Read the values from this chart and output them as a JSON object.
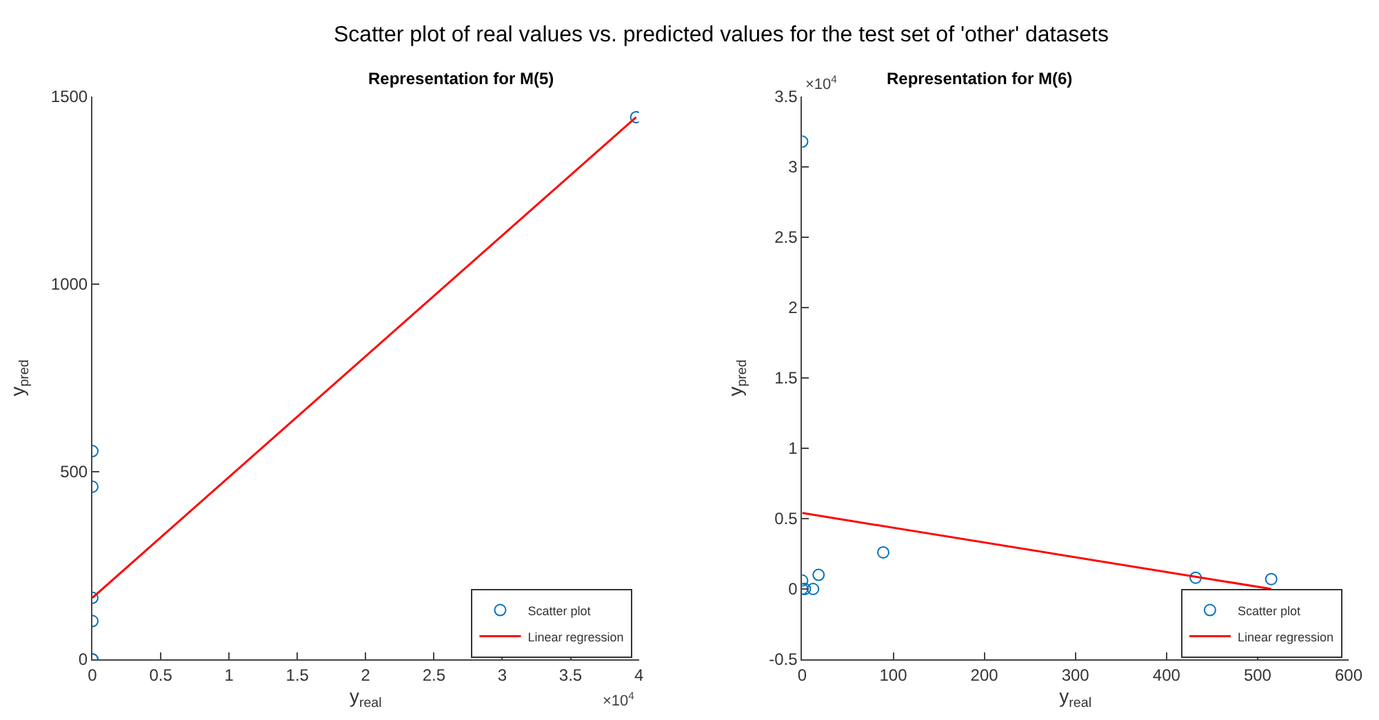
{
  "chart_data": [
    {
      "type": "scatter",
      "title": "Representation for M(5)",
      "xlabel": "y$_{real}$",
      "ylabel": "y$_{pred}$",
      "xlim": [
        0,
        4
      ],
      "xticks": [
        0,
        0.5,
        1,
        1.5,
        2,
        2.5,
        3,
        3.5,
        4
      ],
      "ylim": [
        0,
        1500
      ],
      "yticks": [
        0,
        500,
        1000,
        1500
      ],
      "grid": false,
      "legend": "bottom right",
      "annotations": [
        "Scatter plot of real values vs. predicted values for the test set of 'other' datasets",
        "×10$^{4}$"
      ],
      "series": [
        {
          "name": "Scatter plot",
          "type": "scatter",
          "marker": "circle",
          "color": "#0072bd",
          "x": [
            0,
            0,
            0,
            0,
            0,
            0,
            3.98
          ],
          "values": [
            555,
            460,
            164,
            102,
            0,
            0,
            1445
          ]
        },
        {
          "name": "Linear regression",
          "type": "line",
          "marker": "none",
          "color": "#ff0000",
          "x": [
            0,
            3.98
          ],
          "values": [
            164,
            1445
          ]
        }
      ]
    },
    {
      "type": "scatter",
      "title": "Representation for M(6)",
      "xlabel": "y$_{real}$",
      "ylabel": "y$_{pred}$",
      "xlim": [
        0,
        600
      ],
      "xticks": [
        0,
        100,
        200,
        300,
        400,
        500,
        600
      ],
      "ylim": [
        -0.5,
        3.5
      ],
      "yticks": [
        -0.5,
        0,
        0.5,
        1,
        1.5,
        2,
        2.5,
        3,
        3.5
      ],
      "grid": false,
      "legend": "bottom right",
      "annotations": [
        "×10$^{4}$"
      ],
      "series": [
        {
          "name": "Scatter plot",
          "type": "scatter",
          "marker": "circle",
          "color": "#0072bd",
          "x": [
            0,
            0,
            0,
            3,
            12,
            18,
            89,
            432,
            515
          ],
          "values": [
            3.18,
            0.06,
            0,
            0,
            0,
            0.1,
            0.26,
            0.08,
            0.07
          ]
        },
        {
          "name": "Linear regression",
          "type": "line",
          "marker": "none",
          "color": "#ff0000",
          "x": [
            0,
            515
          ],
          "values": [
            0.54,
            0
          ]
        }
      ]
    }
  ]
}
